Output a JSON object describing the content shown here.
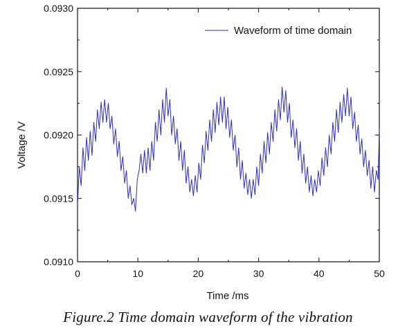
{
  "chart_data": {
    "type": "line",
    "title": "",
    "xlabel": "Time /ms",
    "ylabel": "Voltage /V",
    "xlim": [
      0,
      50
    ],
    "ylim": [
      0.091,
      0.093
    ],
    "x_ticks": [
      "0",
      "10",
      "20",
      "30",
      "40",
      "50"
    ],
    "y_ticks": [
      "0.0910",
      "0.0915",
      "0.0920",
      "0.0925",
      "0.0930"
    ],
    "grid": false,
    "legend_position": "top-right",
    "series": [
      {
        "name": "Waveform of time domain",
        "color": "#2a2acc",
        "points": [
          [
            0.0,
            0.09145
          ],
          [
            0.3,
            0.09175
          ],
          [
            0.6,
            0.0916
          ],
          [
            0.9,
            0.0919
          ],
          [
            1.2,
            0.09172
          ],
          [
            1.5,
            0.09198
          ],
          [
            1.8,
            0.0918
          ],
          [
            2.1,
            0.09203
          ],
          [
            2.4,
            0.09184
          ],
          [
            2.7,
            0.0921
          ],
          [
            3.0,
            0.09195
          ],
          [
            3.3,
            0.0922
          ],
          [
            3.6,
            0.09205
          ],
          [
            3.9,
            0.09226
          ],
          [
            4.2,
            0.0921
          ],
          [
            4.5,
            0.09228
          ],
          [
            4.8,
            0.0921
          ],
          [
            5.1,
            0.09225
          ],
          [
            5.4,
            0.09205
          ],
          [
            5.7,
            0.09215
          ],
          [
            6.0,
            0.09193
          ],
          [
            6.3,
            0.09205
          ],
          [
            6.6,
            0.09183
          ],
          [
            6.9,
            0.09195
          ],
          [
            7.2,
            0.09172
          ],
          [
            7.5,
            0.09183
          ],
          [
            7.8,
            0.09162
          ],
          [
            8.1,
            0.09172
          ],
          [
            8.4,
            0.0915
          ],
          [
            8.7,
            0.0916
          ],
          [
            9.0,
            0.09145
          ],
          [
            9.3,
            0.0915
          ],
          [
            9.6,
            0.0914
          ],
          [
            9.9,
            0.09165
          ],
          [
            10.2,
            0.09172
          ],
          [
            10.5,
            0.09185
          ],
          [
            10.8,
            0.0917
          ],
          [
            11.1,
            0.09188
          ],
          [
            11.4,
            0.0917
          ],
          [
            11.7,
            0.0919
          ],
          [
            12.0,
            0.09172
          ],
          [
            12.3,
            0.09195
          ],
          [
            12.6,
            0.0918
          ],
          [
            12.9,
            0.0921
          ],
          [
            13.2,
            0.09195
          ],
          [
            13.5,
            0.0922
          ],
          [
            13.8,
            0.092
          ],
          [
            14.1,
            0.09228
          ],
          [
            14.4,
            0.0921
          ],
          [
            14.7,
            0.09237
          ],
          [
            15.0,
            0.09215
          ],
          [
            15.3,
            0.09228
          ],
          [
            15.6,
            0.092
          ],
          [
            15.9,
            0.09215
          ],
          [
            16.2,
            0.09193
          ],
          [
            16.5,
            0.09205
          ],
          [
            16.8,
            0.0918
          ],
          [
            17.1,
            0.09195
          ],
          [
            17.4,
            0.09172
          ],
          [
            17.7,
            0.09188
          ],
          [
            18.0,
            0.09162
          ],
          [
            18.3,
            0.09175
          ],
          [
            18.6,
            0.09155
          ],
          [
            18.9,
            0.09165
          ],
          [
            19.2,
            0.09152
          ],
          [
            19.5,
            0.09168
          ],
          [
            19.8,
            0.09155
          ],
          [
            20.1,
            0.09178
          ],
          [
            20.4,
            0.09165
          ],
          [
            20.7,
            0.09192
          ],
          [
            21.0,
            0.09178
          ],
          [
            21.3,
            0.09203
          ],
          [
            21.6,
            0.09188
          ],
          [
            21.9,
            0.09212
          ],
          [
            22.2,
            0.09195
          ],
          [
            22.5,
            0.0922
          ],
          [
            22.8,
            0.09202
          ],
          [
            23.1,
            0.09226
          ],
          [
            23.4,
            0.09208
          ],
          [
            23.7,
            0.0923
          ],
          [
            24.0,
            0.0921
          ],
          [
            24.3,
            0.0923
          ],
          [
            24.6,
            0.09205
          ],
          [
            24.9,
            0.09222
          ],
          [
            25.2,
            0.09198
          ],
          [
            25.5,
            0.09212
          ],
          [
            25.8,
            0.09188
          ],
          [
            26.1,
            0.092
          ],
          [
            26.4,
            0.09175
          ],
          [
            26.7,
            0.0919
          ],
          [
            27.0,
            0.09165
          ],
          [
            27.3,
            0.0918
          ],
          [
            27.6,
            0.09158
          ],
          [
            27.9,
            0.0917
          ],
          [
            28.2,
            0.09153
          ],
          [
            28.5,
            0.09165
          ],
          [
            28.8,
            0.0915
          ],
          [
            29.1,
            0.09165
          ],
          [
            29.4,
            0.09153
          ],
          [
            29.7,
            0.09175
          ],
          [
            30.0,
            0.0916
          ],
          [
            30.3,
            0.09185
          ],
          [
            30.6,
            0.0917
          ],
          [
            30.9,
            0.09195
          ],
          [
            31.2,
            0.09178
          ],
          [
            31.5,
            0.09202
          ],
          [
            31.8,
            0.09185
          ],
          [
            32.1,
            0.0921
          ],
          [
            32.4,
            0.09195
          ],
          [
            32.7,
            0.0922
          ],
          [
            33.0,
            0.09203
          ],
          [
            33.3,
            0.09228
          ],
          [
            33.6,
            0.09212
          ],
          [
            33.9,
            0.09238
          ],
          [
            34.2,
            0.09218
          ],
          [
            34.5,
            0.09235
          ],
          [
            34.8,
            0.0921
          ],
          [
            35.1,
            0.09225
          ],
          [
            35.4,
            0.09198
          ],
          [
            35.7,
            0.09212
          ],
          [
            36.0,
            0.0919
          ],
          [
            36.3,
            0.09205
          ],
          [
            36.6,
            0.0918
          ],
          [
            36.9,
            0.09195
          ],
          [
            37.2,
            0.0917
          ],
          [
            37.5,
            0.09185
          ],
          [
            37.8,
            0.09162
          ],
          [
            38.1,
            0.09175
          ],
          [
            38.4,
            0.09155
          ],
          [
            38.7,
            0.09168
          ],
          [
            39.0,
            0.09152
          ],
          [
            39.3,
            0.09165
          ],
          [
            39.6,
            0.09155
          ],
          [
            39.9,
            0.09172
          ],
          [
            40.2,
            0.0916
          ],
          [
            40.5,
            0.09182
          ],
          [
            40.8,
            0.09168
          ],
          [
            41.1,
            0.0919
          ],
          [
            41.4,
            0.09175
          ],
          [
            41.7,
            0.092
          ],
          [
            42.0,
            0.09185
          ],
          [
            42.3,
            0.0921
          ],
          [
            42.6,
            0.09195
          ],
          [
            42.9,
            0.0922
          ],
          [
            43.2,
            0.09202
          ],
          [
            43.5,
            0.09226
          ],
          [
            43.8,
            0.0921
          ],
          [
            44.1,
            0.09232
          ],
          [
            44.4,
            0.09215
          ],
          [
            44.7,
            0.09237
          ],
          [
            45.0,
            0.09215
          ],
          [
            45.3,
            0.0923
          ],
          [
            45.6,
            0.09205
          ],
          [
            45.9,
            0.09218
          ],
          [
            46.2,
            0.09195
          ],
          [
            46.5,
            0.09208
          ],
          [
            46.8,
            0.09185
          ],
          [
            47.1,
            0.09197
          ],
          [
            47.4,
            0.09175
          ],
          [
            47.7,
            0.09188
          ],
          [
            48.0,
            0.09168
          ],
          [
            48.3,
            0.0918
          ],
          [
            48.6,
            0.09158
          ],
          [
            48.9,
            0.09175
          ],
          [
            49.2,
            0.09155
          ],
          [
            49.5,
            0.09172
          ],
          [
            49.8,
            0.09165
          ],
          [
            50.0,
            0.09205
          ]
        ]
      }
    ]
  },
  "caption": "Figure.2 Time domain waveform of the vibration"
}
